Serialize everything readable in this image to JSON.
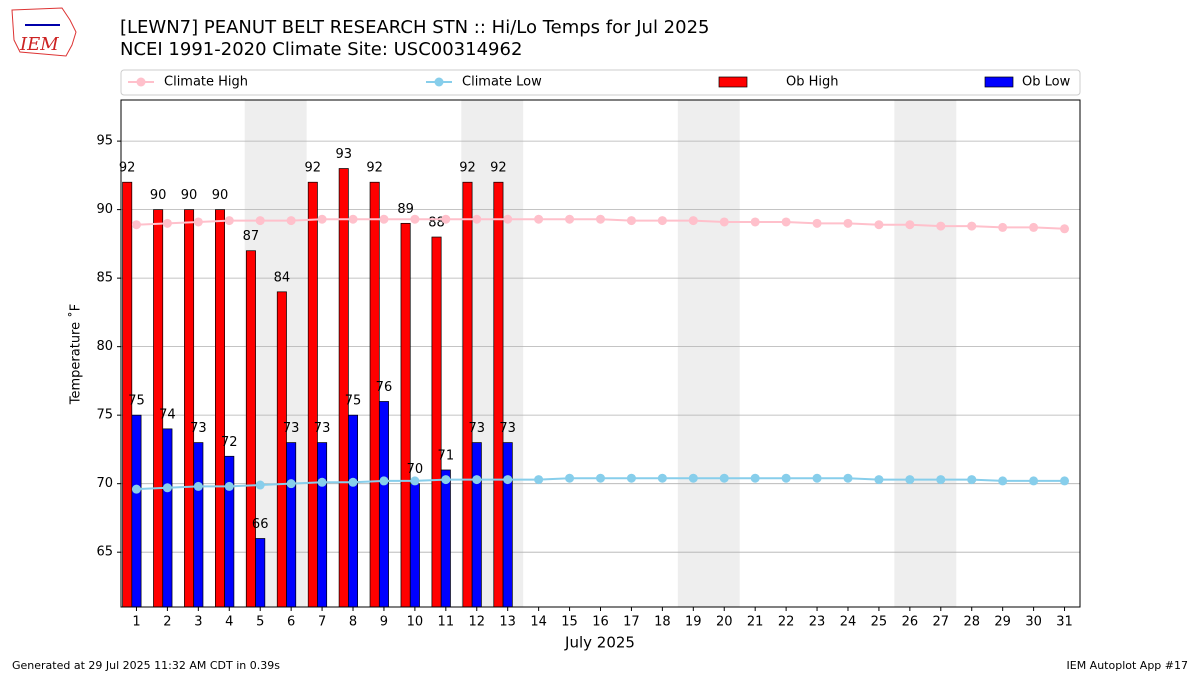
{
  "chart_data": {
    "type": "bar_line",
    "title": "[LEWN7] PEANUT BELT RESEARCH STN :: Hi/Lo Temps for Jul 2025",
    "subtitle": "NCEI 1991-2020 Climate Site: USC00314962",
    "x_label": "July 2025",
    "y_label": "Temperature ˚F",
    "footer_left": "Generated at 29 Jul 2025 11:32 AM CDT in 0.39s",
    "footer_right": "IEM Autoplot App #17",
    "logo_text": "IEM",
    "x": [
      1,
      2,
      3,
      4,
      5,
      6,
      7,
      8,
      9,
      10,
      11,
      12,
      13,
      14,
      15,
      16,
      17,
      18,
      19,
      20,
      21,
      22,
      23,
      24,
      25,
      26,
      27,
      28,
      29,
      30,
      31
    ],
    "xlim": [
      0.5,
      31.5
    ],
    "ylim": [
      61,
      98
    ],
    "yticks": [
      65,
      70,
      75,
      80,
      85,
      90,
      95
    ],
    "grid": true,
    "weekend_bands": [
      [
        4.5,
        6.5
      ],
      [
        11.5,
        13.5
      ],
      [
        18.5,
        20.5
      ],
      [
        25.5,
        27.5
      ]
    ],
    "series": [
      {
        "name": "Climate High",
        "kind": "line",
        "color": "#ffc0cb",
        "values": [
          88.9,
          89.0,
          89.1,
          89.2,
          89.2,
          89.2,
          89.3,
          89.3,
          89.3,
          89.3,
          89.3,
          89.3,
          89.3,
          89.3,
          89.3,
          89.3,
          89.2,
          89.2,
          89.2,
          89.1,
          89.1,
          89.1,
          89.0,
          89.0,
          88.9,
          88.9,
          88.8,
          88.8,
          88.7,
          88.7,
          88.6
        ]
      },
      {
        "name": "Climate Low",
        "kind": "line",
        "color": "#87ceeb",
        "values": [
          69.6,
          69.7,
          69.8,
          69.8,
          69.9,
          70.0,
          70.1,
          70.1,
          70.2,
          70.2,
          70.3,
          70.3,
          70.3,
          70.3,
          70.4,
          70.4,
          70.4,
          70.4,
          70.4,
          70.4,
          70.4,
          70.4,
          70.4,
          70.4,
          70.3,
          70.3,
          70.3,
          70.3,
          70.2,
          70.2,
          70.2
        ]
      },
      {
        "name": "Ob High",
        "kind": "bar",
        "color": "#ff0000",
        "values": [
          92,
          90,
          90,
          90,
          87,
          84,
          92,
          93,
          92,
          89,
          88,
          92,
          92,
          null,
          null,
          null,
          null,
          null,
          null,
          null,
          null,
          null,
          null,
          null,
          null,
          null,
          null,
          null,
          null,
          null,
          null
        ]
      },
      {
        "name": "Ob Low",
        "kind": "bar",
        "color": "#0000ff",
        "values": [
          75,
          74,
          73,
          72,
          66,
          73,
          73,
          75,
          76,
          70,
          71,
          73,
          73,
          null,
          null,
          null,
          null,
          null,
          null,
          null,
          null,
          null,
          null,
          null,
          null,
          null,
          null,
          null,
          null,
          null,
          null
        ]
      }
    ]
  }
}
